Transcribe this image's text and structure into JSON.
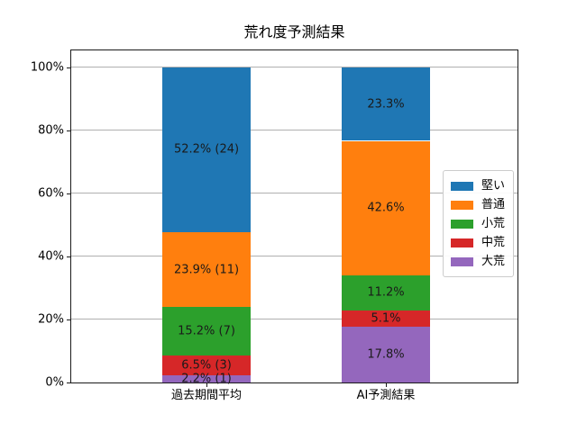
{
  "window": {
    "background_color": "#ffffff"
  },
  "chart_data": {
    "type": "bar",
    "stacked": true,
    "title": "荒れ度予測結果",
    "categories": [
      "過去期間平均",
      "AI予測結果"
    ],
    "series": [
      {
        "name": "堅い",
        "color": "#1f77b4",
        "values": [
          52.2,
          23.3
        ],
        "labels": [
          "52.2% (24)",
          "23.3%"
        ]
      },
      {
        "name": "普通",
        "color": "#ff7f0e",
        "values": [
          23.9,
          42.6
        ],
        "labels": [
          "23.9% (11)",
          "42.6%"
        ]
      },
      {
        "name": "小荒",
        "color": "#2ca02c",
        "values": [
          15.2,
          11.2
        ],
        "labels": [
          "15.2% (7)",
          "11.2%"
        ]
      },
      {
        "name": "中荒",
        "color": "#d62728",
        "values": [
          6.5,
          5.1
        ],
        "labels": [
          "6.5% (3)",
          "5.1%"
        ]
      },
      {
        "name": "大荒",
        "color": "#9467bd",
        "values": [
          2.2,
          17.8
        ],
        "labels": [
          "2.2% (1)",
          "17.8%"
        ]
      }
    ],
    "stacking_order_note": "bottom-to-top: 大荒, 中荒, 小荒, 普通, 堅い (reverse of legend order)",
    "y_ticks": [
      {
        "value": 0,
        "label": "0%"
      },
      {
        "value": 20,
        "label": "20%"
      },
      {
        "value": 40,
        "label": "40%"
      },
      {
        "value": 60,
        "label": "60%"
      },
      {
        "value": 80,
        "label": "80%"
      },
      {
        "value": 100,
        "label": "100%"
      }
    ],
    "ylim": [
      0,
      105.4
    ],
    "grid": "horizontal",
    "gridline_color": "#b0b0b0",
    "label_text_color": "#1a1a1a",
    "legend_position": "center right"
  }
}
